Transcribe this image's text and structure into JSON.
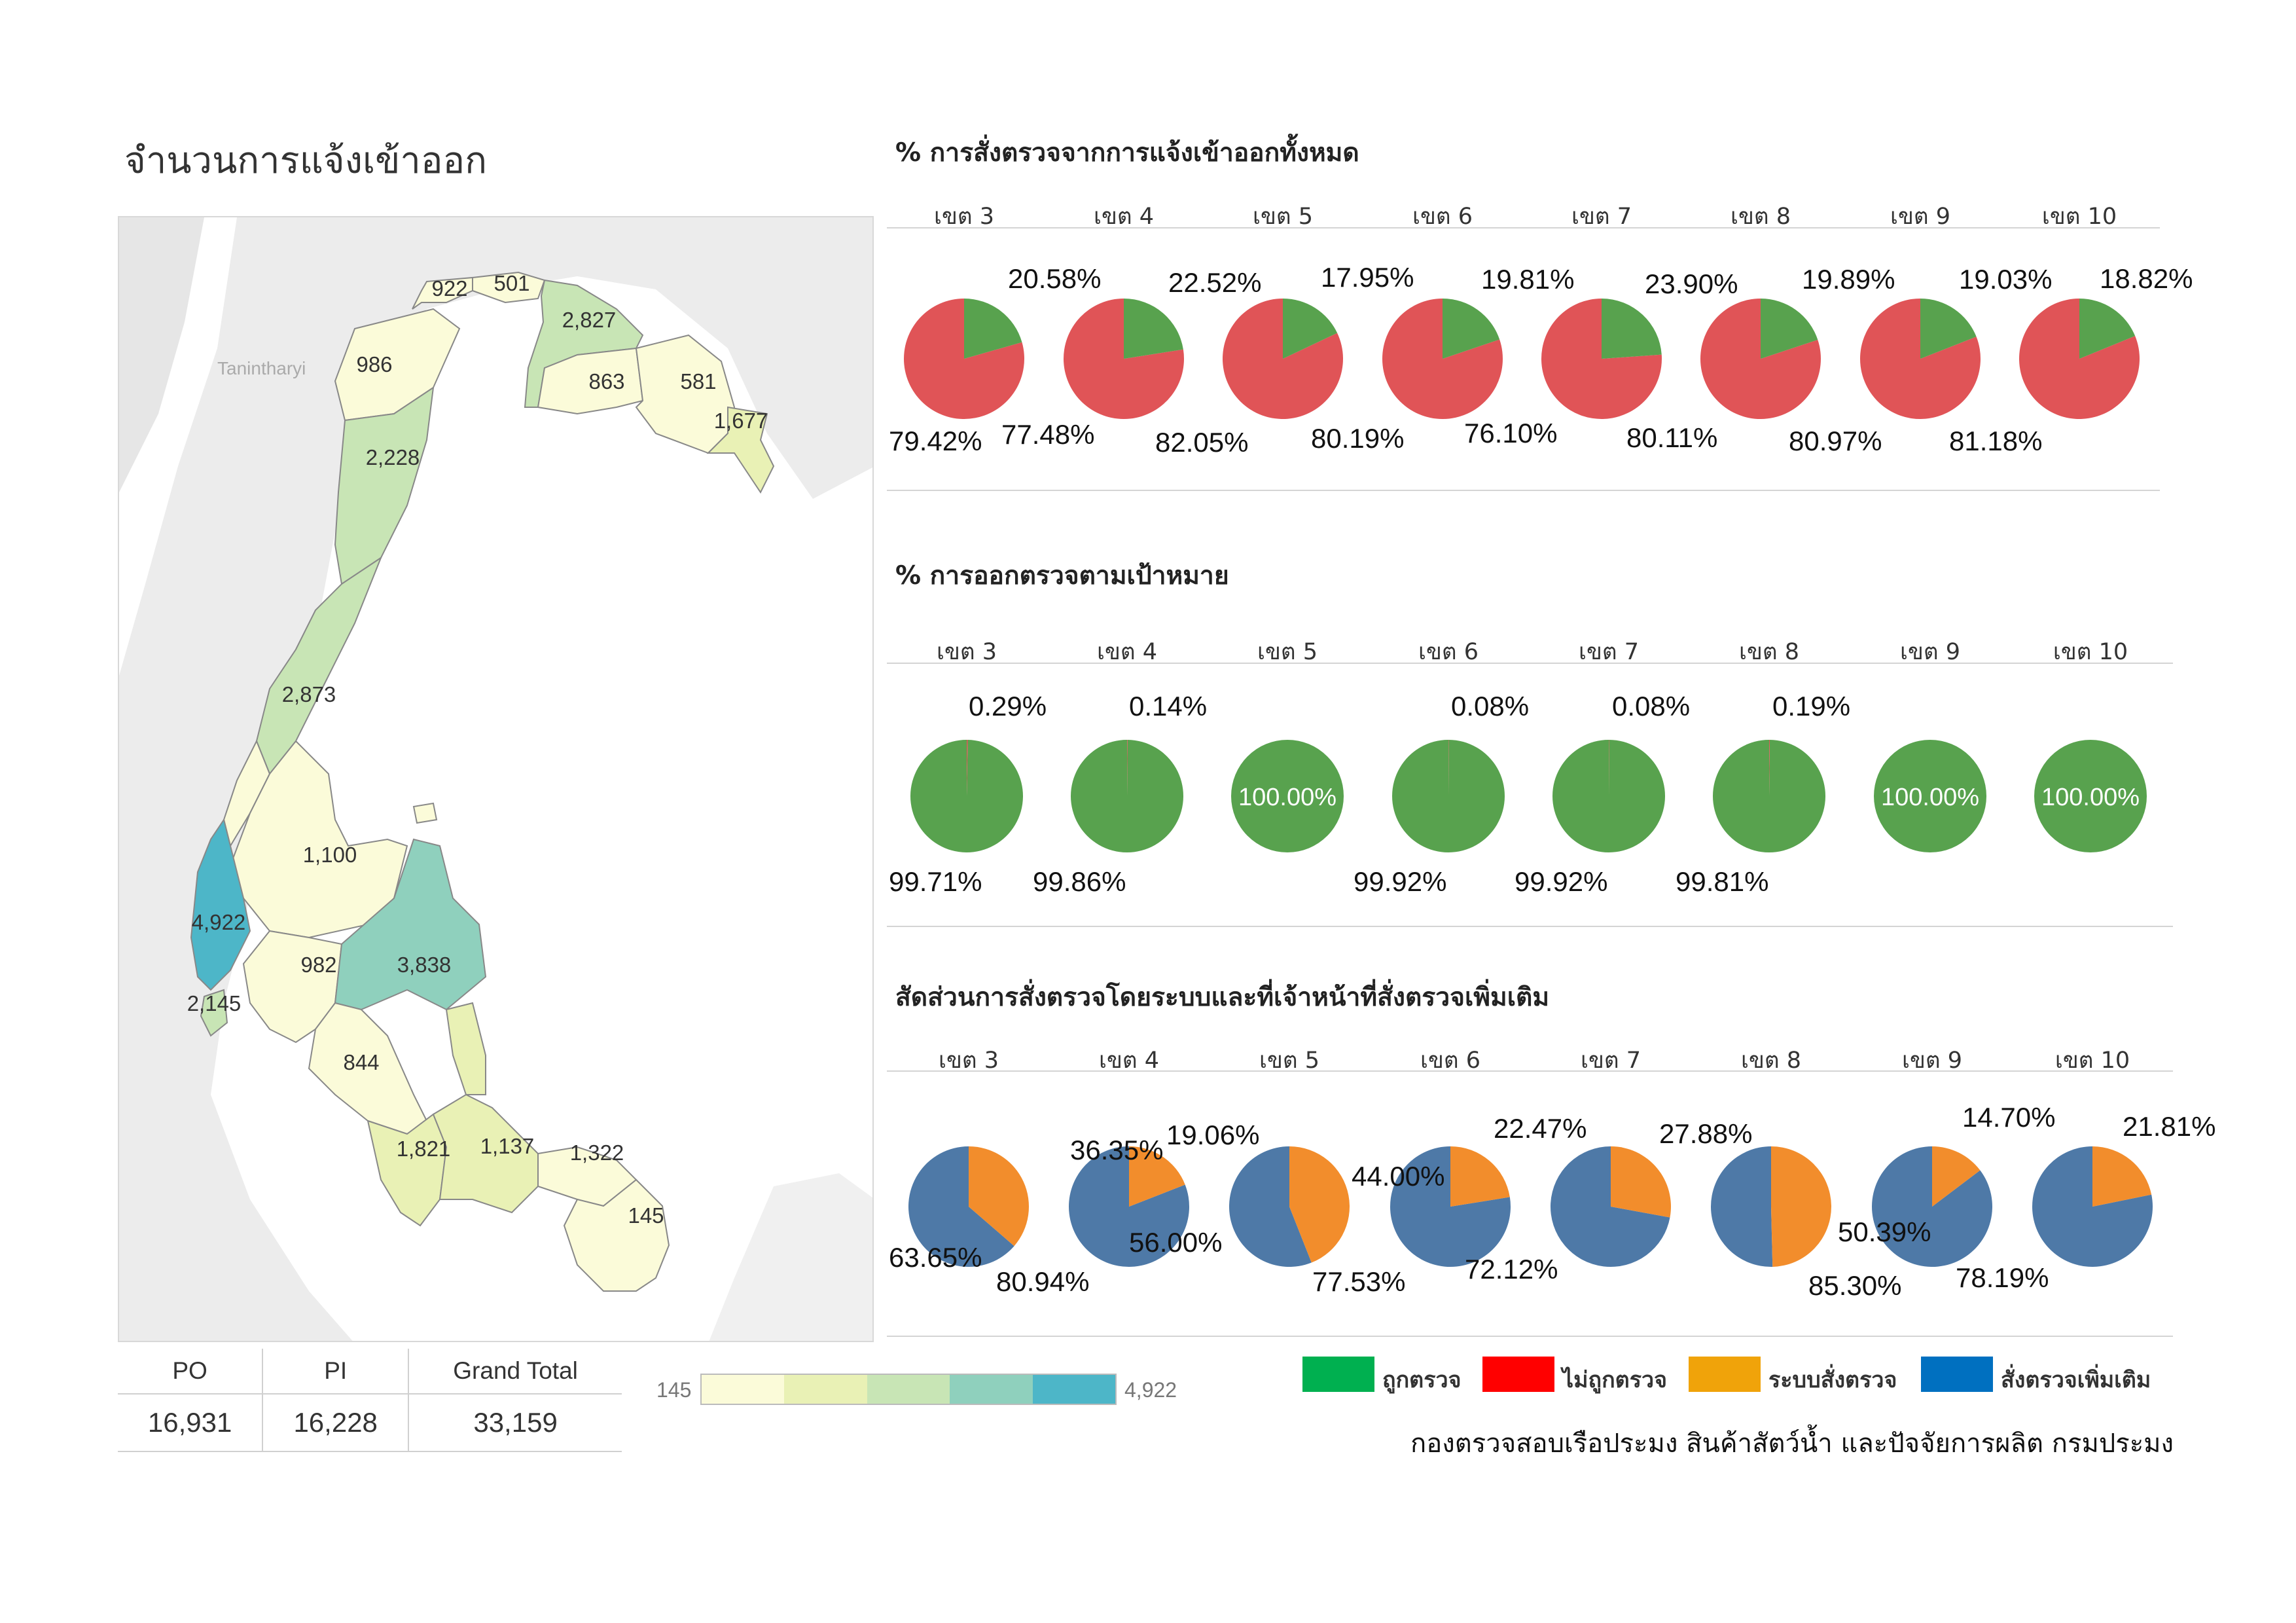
{
  "page_title": "จำนวนการแจ้งเข้าออก",
  "map": {
    "basemap_label": "Tanintharyi",
    "province_values": [
      "922",
      "501",
      "2,827",
      "986",
      "863",
      "581",
      "1,677",
      "2,228",
      "2,873",
      "1,100",
      "4,922",
      "982",
      "3,838",
      "2,145",
      "844",
      "1,821",
      "1,137",
      "1,322",
      "145"
    ]
  },
  "summary_table": {
    "headers": [
      "PO",
      "PI",
      "Grand Total"
    ],
    "values": [
      "16,931",
      "16,228",
      "33,159"
    ]
  },
  "color_scale": {
    "min_label": "145",
    "max_label": "4,922",
    "colors": [
      "#fbfbd9",
      "#e9f1b5",
      "#c8e5b5",
      "#8fd0bd",
      "#4db6c8"
    ]
  },
  "colors": {
    "green": "#58a24e",
    "red": "#e05457",
    "orange": "#f28d2c",
    "blue": "#4e79a7",
    "legend_green": "#00b050",
    "legend_red": "#ff0000",
    "legend_orange": "#f0a30a",
    "legend_blue": "#0070c0"
  },
  "legend": [
    "ถูกตรวจ",
    "ไม่ถูกตรวจ",
    "ระบบสั่งตรวจ",
    "สั่งตรวจเพิ่มเติม"
  ],
  "footer_credit": "กองตรวจสอบเรือประมง สินค้าสัตว์น้ำ และปัจจัยการผลิต กรมประมง",
  "chart_data": [
    {
      "type": "pie",
      "title": "% การสั่งตรวจจากการแจ้งเข้าออกทั้งหมด",
      "categories": [
        "เขต 3",
        "เขต 4",
        "เขต 5",
        "เขต 6",
        "เขต 7",
        "เขต 8",
        "เขต 9",
        "เขต 10"
      ],
      "series": [
        {
          "name": "ถูกตรวจ",
          "values": [
            20.58,
            22.52,
            17.95,
            19.81,
            23.9,
            19.89,
            19.03,
            18.82
          ],
          "labels": [
            "20.58%",
            "22.52%",
            "17.95%",
            "19.81%",
            "23.90%",
            "19.89%",
            "19.03%",
            "18.82%"
          ]
        },
        {
          "name": "ไม่ถูกตรวจ",
          "values": [
            79.42,
            77.48,
            82.05,
            80.19,
            76.1,
            80.11,
            80.97,
            81.18
          ],
          "labels": [
            "79.42%",
            "77.48%",
            "82.05%",
            "80.19%",
            "76.10%",
            "80.11%",
            "80.97%",
            "81.18%"
          ]
        }
      ]
    },
    {
      "type": "pie",
      "title": "% การออกตรวจตามเป้าหมาย",
      "categories": [
        "เขต 3",
        "เขต 4",
        "เขต 5",
        "เขต 6",
        "เขต 7",
        "เขต 8",
        "เขต 9",
        "เขต 10"
      ],
      "series": [
        {
          "name": "ไม่ถูกตรวจ",
          "values": [
            0.29,
            0.14,
            0,
            0.08,
            0.08,
            0.19,
            0,
            0
          ],
          "labels": [
            "0.29%",
            "0.14%",
            "",
            "0.08%",
            "0.08%",
            "0.19%",
            "",
            ""
          ]
        },
        {
          "name": "ถูกตรวจ",
          "values": [
            99.71,
            99.86,
            100,
            99.92,
            99.92,
            99.81,
            100,
            100
          ],
          "labels": [
            "99.71%",
            "99.86%",
            "100.00%",
            "99.92%",
            "99.92%",
            "99.81%",
            "100.00%",
            "100.00%"
          ]
        }
      ]
    },
    {
      "type": "pie",
      "title": "สัดส่วนการสั่งตรวจโดยระบบและที่เจ้าหน้าที่สั่งตรวจเพิ่มเติม",
      "categories": [
        "เขต 3",
        "เขต 4",
        "เขต 5",
        "เขต 6",
        "เขต 7",
        "เขต 8",
        "เขต 9",
        "เขต 10"
      ],
      "series": [
        {
          "name": "ระบบสั่งตรวจ",
          "values": [
            36.35,
            19.06,
            44.0,
            22.47,
            27.88,
            49.61,
            14.7,
            21.81
          ],
          "labels": [
            "36.35%",
            "19.06%",
            "44.00%",
            "22.47%",
            "27.88%",
            "",
            "14.70%",
            "21.81%"
          ]
        },
        {
          "name": "สั่งตรวจเพิ่มเติม",
          "values": [
            63.65,
            80.94,
            56.0,
            77.53,
            72.12,
            50.39,
            85.3,
            78.19
          ],
          "labels": [
            "63.65%",
            "80.94%",
            "56.00%",
            "77.53%",
            "72.12%",
            "50.39%",
            "85.30%",
            "78.19%"
          ]
        }
      ]
    }
  ]
}
